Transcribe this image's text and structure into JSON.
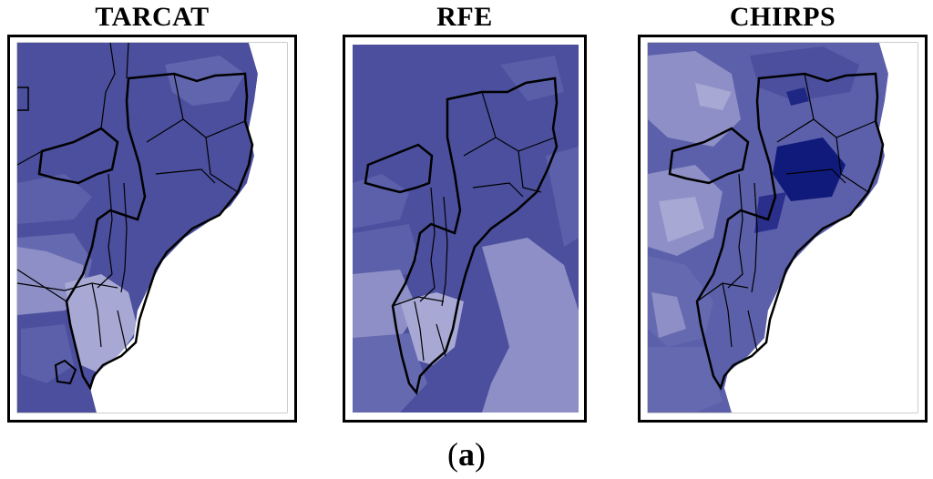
{
  "panels": [
    {
      "id": "tarcat",
      "title": "TARCAT"
    },
    {
      "id": "rfe",
      "title": "RFE"
    },
    {
      "id": "chirps",
      "title": "CHIRPS"
    }
  ],
  "caption": {
    "open": "(",
    "letter": "a",
    "close": ")"
  },
  "colors": {
    "rain_dark": "#4b4f9d",
    "rain_mid": "#5c60aa",
    "rain_light": "#8d8fc6",
    "rain_pale": "#a7a8d4",
    "rain_intense": "#0f1a7a",
    "ocean_white": "#ffffff",
    "border": "#000000"
  }
}
